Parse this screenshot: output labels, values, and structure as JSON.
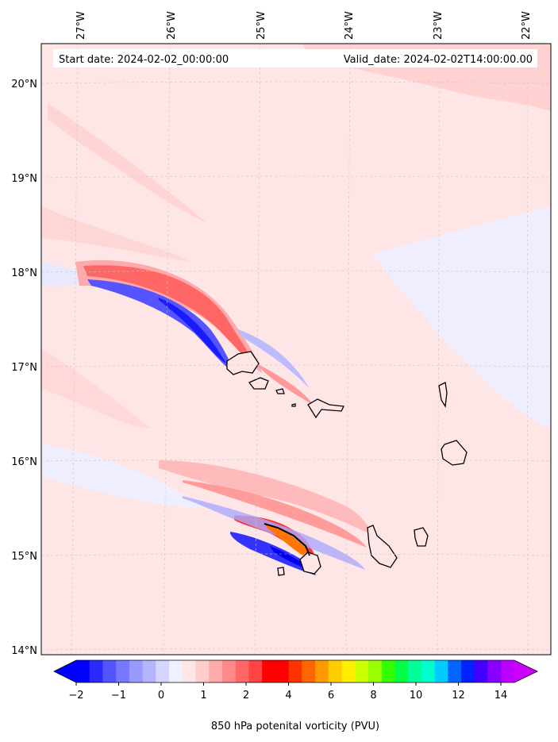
{
  "map": {
    "start_date": "Start date: 2024-02-02_00:00:00",
    "valid_date": "Valid_date: 2024-02-02T14:00:00.00",
    "lon_labels": [
      "27°W",
      "26°W",
      "25°W",
      "24°W",
      "23°W",
      "22°W"
    ],
    "lat_labels": [
      "20°N",
      "19°N",
      "18°N",
      "17°N",
      "16°N",
      "15°N",
      "14°N"
    ],
    "background_color": "#ffe6e6",
    "grid_color": "#c8c8c8",
    "coastline_color": "#000000"
  },
  "colorbar": {
    "label": "850 hPa potenital vorticity (PVU)",
    "tick_labels": [
      "−2",
      "−1",
      "0",
      "1",
      "2",
      "4",
      "6",
      "8",
      "10",
      "12",
      "14"
    ],
    "colors": [
      "#0000ff",
      "#2a2aff",
      "#5555ff",
      "#7777ff",
      "#9999ff",
      "#b5b5ff",
      "#d5d5ff",
      "#f0f0ff",
      "#ffe6e6",
      "#ffcccc",
      "#ffaaaa",
      "#ff8888",
      "#ff6666",
      "#ff4444",
      "#ff0000",
      "#ff0000",
      "#ff3300",
      "#ff6600",
      "#ff9900",
      "#ffcc00",
      "#ffee00",
      "#ccff00",
      "#99ff00",
      "#33ff00",
      "#00ff44",
      "#00ff99",
      "#00ffcc",
      "#00ccff",
      "#0066ff",
      "#0022ff",
      "#4400ff",
      "#8800ff",
      "#bb00ff"
    ],
    "extend_low_color": "#0000ff",
    "extend_high_color": "#cc00ff"
  }
}
